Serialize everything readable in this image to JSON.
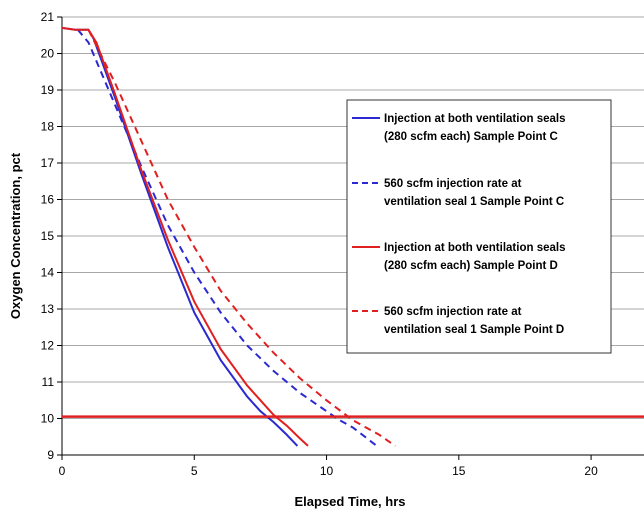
{
  "chart_data": {
    "type": "line",
    "title": "",
    "xlabel": "Elapsed Time, hrs",
    "ylabel": "Oxygen Concentration, pct",
    "xlim": [
      0,
      22
    ],
    "ylim": [
      9,
      21
    ],
    "xticks": [
      "0",
      "5",
      "10",
      "15",
      "20"
    ],
    "yticks": [
      "9",
      "10",
      "11",
      "12",
      "13",
      "14",
      "15",
      "16",
      "17",
      "18",
      "19",
      "20",
      "21"
    ],
    "grid": "horizontal",
    "legend_position": "right",
    "series": [
      {
        "name_lines": [
          "Injection at both ventilation seals",
          "(280 scfm each) Sample Point C"
        ],
        "color": "#2a2ad0",
        "style": "solid",
        "x": [
          0,
          0.5,
          1.0,
          1.2,
          2.0,
          3.0,
          4.0,
          5.0,
          6.0,
          7.0,
          7.5,
          8.0,
          8.5,
          8.9
        ],
        "y": [
          20.7,
          20.65,
          20.65,
          20.4,
          18.8,
          16.7,
          14.7,
          12.9,
          11.6,
          10.6,
          10.2,
          9.9,
          9.55,
          9.25
        ]
      },
      {
        "name_lines": [
          "560 scfm injection rate at",
          "ventilation seal 1 Sample Point C"
        ],
        "color": "#2a2ad0",
        "style": "dashed",
        "x": [
          0.6,
          1.0,
          2.0,
          3.0,
          4.0,
          5.0,
          6.0,
          7.0,
          8.0,
          9.0,
          10.0,
          10.5,
          11.0,
          11.9
        ],
        "y": [
          20.65,
          20.3,
          18.6,
          16.9,
          15.3,
          14.0,
          12.9,
          12.0,
          11.3,
          10.7,
          10.2,
          9.95,
          9.75,
          9.25
        ]
      },
      {
        "name_lines": [
          "Injection at both ventilation seals",
          "(280 scfm each) Sample Point D"
        ],
        "color": "#e02020",
        "style": "solid",
        "x": [
          0,
          0.5,
          1.0,
          1.3,
          2.0,
          3.0,
          4.0,
          5.0,
          6.0,
          7.0,
          8.0,
          8.5,
          9.0,
          9.3
        ],
        "y": [
          20.7,
          20.65,
          20.65,
          20.3,
          18.9,
          16.8,
          14.9,
          13.2,
          11.9,
          10.9,
          10.1,
          9.8,
          9.45,
          9.25
        ]
      },
      {
        "name_lines": [
          "560 scfm injection rate at",
          "ventilation seal 1 Sample Point D"
        ],
        "color": "#e02020",
        "style": "dashed",
        "x": [
          1.0,
          2.0,
          3.0,
          4.0,
          5.0,
          6.0,
          7.0,
          8.0,
          9.0,
          10.0,
          11.0,
          12.0,
          12.6
        ],
        "y": [
          20.65,
          19.2,
          17.6,
          16.0,
          14.7,
          13.5,
          12.6,
          11.8,
          11.1,
          10.5,
          9.95,
          9.55,
          9.25
        ]
      }
    ],
    "reference_line": {
      "y": 10.05,
      "color": "#e02020"
    }
  }
}
